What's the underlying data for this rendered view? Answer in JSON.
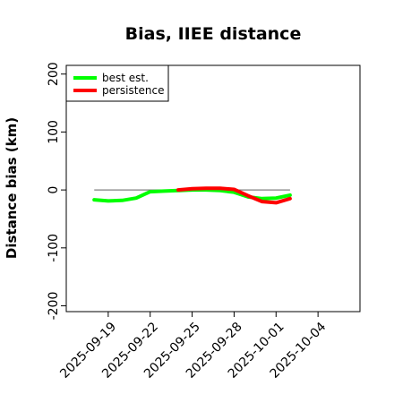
{
  "chart_data": {
    "type": "line",
    "title": "Bias, IIEE distance",
    "xlabel": "",
    "ylabel": "Distance bias (km)",
    "xlim": [
      "2025-09-16",
      "2025-10-07"
    ],
    "ylim": [
      -210,
      215
    ],
    "yticks": [
      -200,
      -100,
      0,
      100,
      200
    ],
    "xticks": [
      "2025-09-19",
      "2025-09-22",
      "2025-09-25",
      "2025-09-28",
      "2025-10-01",
      "2025-10-04"
    ],
    "grid": false,
    "legend_position": "top-left",
    "reference_line": {
      "y": 0,
      "x_start": "2025-09-18",
      "x_end": "2025-10-02",
      "color": "#7f7f7f"
    },
    "series": [
      {
        "name": "best est.",
        "color": "#00ff00",
        "x": [
          "2025-09-18",
          "2025-09-19",
          "2025-09-20",
          "2025-09-21",
          "2025-09-22",
          "2025-09-23",
          "2025-09-24",
          "2025-09-25",
          "2025-09-26",
          "2025-09-27",
          "2025-09-28",
          "2025-09-29",
          "2025-09-30",
          "2025-10-01",
          "2025-10-02"
        ],
        "values": [
          -17,
          -19,
          -18,
          -14,
          -3,
          -2,
          -1,
          0,
          0,
          -1,
          -4,
          -12,
          -15,
          -14,
          -9
        ]
      },
      {
        "name": "persistence",
        "color": "#ff0000",
        "x": [
          "2025-09-24",
          "2025-09-25",
          "2025-09-26",
          "2025-09-27",
          "2025-09-28",
          "2025-09-29",
          "2025-09-30",
          "2025-10-01",
          "2025-10-02"
        ],
        "values": [
          0,
          2,
          3,
          3,
          1,
          -10,
          -20,
          -22,
          -15
        ]
      }
    ]
  }
}
